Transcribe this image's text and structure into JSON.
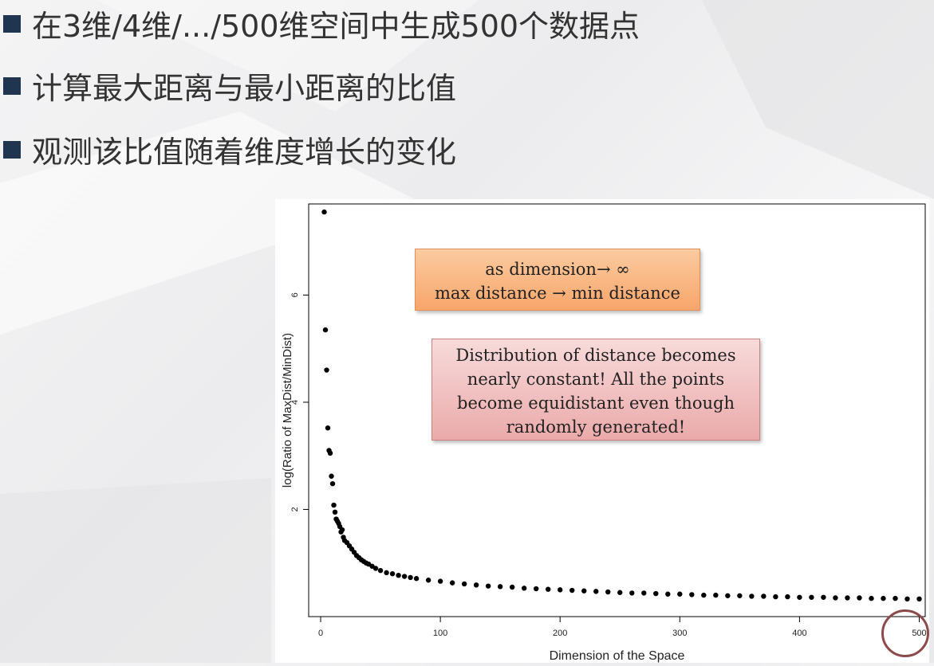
{
  "slide": {
    "bullets": [
      "在3维/4维/.../500维空间中生成500个数据点",
      "计算最大距离与最小距离的比值",
      "观测该比值随着维度增长的变化"
    ]
  },
  "notes": {
    "orange": [
      "as dimension→ ∞",
      "max distance → min distance"
    ],
    "pink": [
      "Distribution of distance becomes",
      "nearly constant! All the points",
      "become equidistant even though",
      "randomly generated!"
    ]
  },
  "chart_data": {
    "type": "scatter",
    "title": "",
    "xlabel": "Dimension of the Space",
    "ylabel": "log(Ratio of MaxDist/MinDist)",
    "xlim": [
      -10,
      505
    ],
    "ylim": [
      0,
      7.7
    ],
    "xticks": [
      "0",
      "100",
      "200",
      "300",
      "400",
      "500"
    ],
    "yticks": [
      "2",
      "4",
      "6"
    ],
    "point_color": "#000000",
    "x": [
      3,
      4,
      5,
      6,
      7,
      8,
      9,
      10,
      11,
      12,
      13,
      14,
      15,
      16,
      17,
      18,
      19,
      20,
      22,
      24,
      26,
      28,
      30,
      32,
      34,
      36,
      38,
      40,
      43,
      46,
      50,
      55,
      60,
      65,
      70,
      75,
      80,
      90,
      100,
      110,
      120,
      130,
      140,
      150,
      160,
      170,
      180,
      190,
      200,
      210,
      220,
      230,
      240,
      250,
      260,
      270,
      280,
      290,
      300,
      310,
      320,
      330,
      340,
      350,
      360,
      370,
      380,
      390,
      400,
      410,
      420,
      430,
      440,
      450,
      460,
      470,
      480,
      490,
      500
    ],
    "y": [
      7.55,
      5.35,
      4.6,
      3.52,
      3.1,
      3.05,
      2.62,
      2.48,
      2.08,
      1.95,
      1.82,
      1.78,
      1.74,
      1.68,
      1.58,
      1.62,
      1.48,
      1.42,
      1.38,
      1.32,
      1.26,
      1.2,
      1.14,
      1.1,
      1.06,
      1.03,
      1.0,
      0.98,
      0.94,
      0.9,
      0.86,
      0.82,
      0.8,
      0.77,
      0.75,
      0.73,
      0.71,
      0.68,
      0.66,
      0.63,
      0.61,
      0.59,
      0.57,
      0.56,
      0.55,
      0.53,
      0.52,
      0.51,
      0.5,
      0.49,
      0.48,
      0.47,
      0.46,
      0.45,
      0.44,
      0.44,
      0.43,
      0.42,
      0.42,
      0.41,
      0.4,
      0.4,
      0.39,
      0.39,
      0.38,
      0.38,
      0.37,
      0.37,
      0.36,
      0.36,
      0.36,
      0.35,
      0.35,
      0.35,
      0.34,
      0.34,
      0.34,
      0.33,
      0.33
    ]
  }
}
